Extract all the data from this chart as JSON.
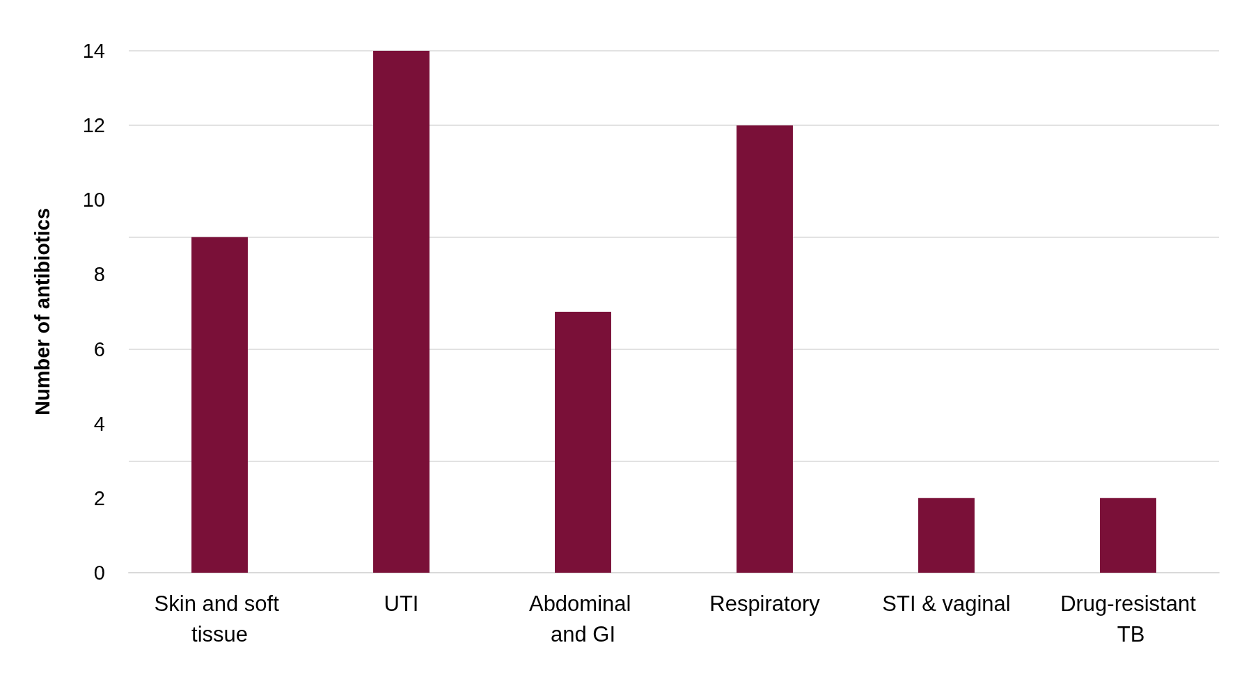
{
  "chart_data": {
    "type": "bar",
    "ylabel": "Number of antibiotics",
    "categories": [
      "Skin and soft tissue",
      "UTI",
      "Abdominal and GI",
      "Respiratory",
      "STI & vaginal",
      "Drug-resistant TB"
    ],
    "values": [
      9,
      14,
      7,
      12,
      2,
      2
    ],
    "color": "#7a1038",
    "ylim": [
      0,
      14
    ],
    "yticks": [
      0,
      2,
      4,
      6,
      8,
      10,
      12,
      14
    ],
    "grid": "y"
  }
}
